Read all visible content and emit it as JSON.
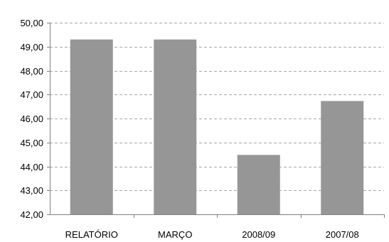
{
  "chart_data": {
    "type": "bar",
    "title": "",
    "xlabel": "",
    "ylabel": "",
    "categories": [
      "RELATÓRIO",
      "MARÇO",
      "2008/09",
      "2007/08"
    ],
    "values": [
      49.3,
      49.3,
      44.48,
      46.73
    ],
    "ylim": [
      42,
      50
    ],
    "yticks": [
      "42,00",
      "43,00",
      "44,00",
      "45,00",
      "46,00",
      "47,00",
      "48,00",
      "49,00",
      "50,00"
    ],
    "grid": true,
    "bar_color": "#969696",
    "legend": false
  }
}
